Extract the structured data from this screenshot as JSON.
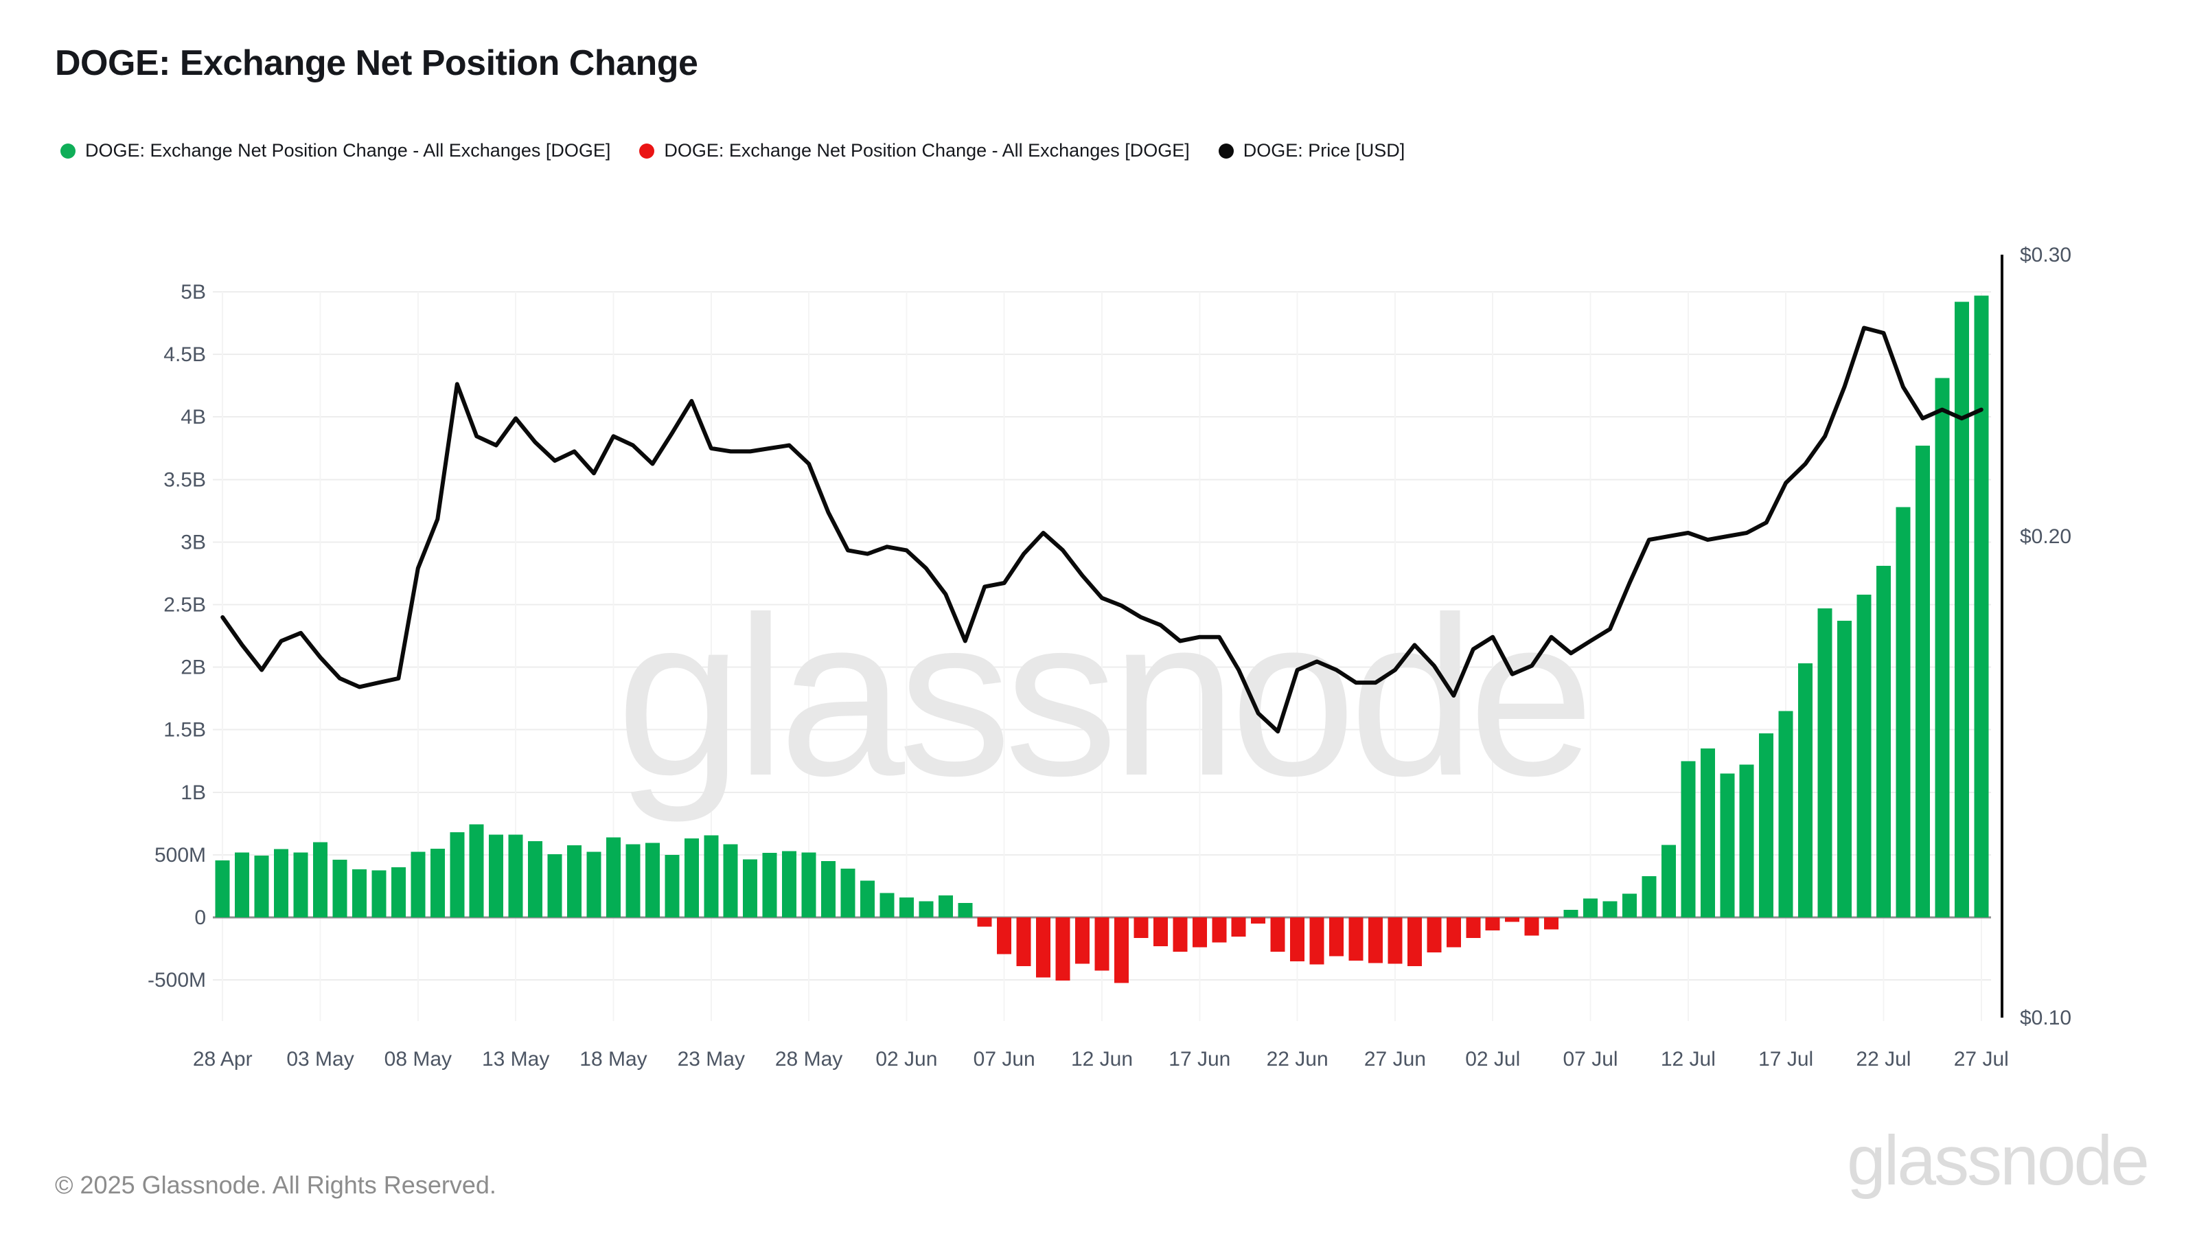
{
  "header": {
    "title": "DOGE: Exchange Net Position Change"
  },
  "legend": {
    "items": [
      {
        "label": "DOGE: Exchange Net Position Change - All Exchanges [DOGE]",
        "color": "#0fae58",
        "marker": "green-dot"
      },
      {
        "label": "DOGE: Exchange Net Position Change - All Exchanges [DOGE]",
        "color": "#ea1414",
        "marker": "red-dot"
      },
      {
        "label": "DOGE: Price [USD]",
        "color": "#0b0b0b",
        "marker": "black-dot"
      }
    ]
  },
  "watermark": {
    "text": "glassnode"
  },
  "footer": {
    "copyright": "© 2025 Glassnode. All Rights Reserved.",
    "logo_text": "glassnode"
  },
  "colors": {
    "bar_positive": "#04ae54",
    "bar_negative": "#e91515",
    "price_line": "#0a0a0a",
    "gridline": "#ededed",
    "vertical_gridline": "#f4f4f4",
    "zero_line": "#8f8f8f",
    "axis_text": "#4c5563",
    "watermark": "#e8e8e8"
  },
  "chart_data": {
    "type": "combo-bar-line",
    "title": "DOGE: Exchange Net Position Change",
    "grid": "on",
    "legend_position": "top-left",
    "left_axis": {
      "unit": "DOGE",
      "tick_labels": [
        "5B",
        "4.5B",
        "4B",
        "3.5B",
        "3B",
        "2.5B",
        "2B",
        "1.5B",
        "1B",
        "500M",
        "0",
        "-500M"
      ],
      "tick_values_millions": [
        5000,
        4500,
        4000,
        3500,
        3000,
        2500,
        2000,
        1500,
        1000,
        500,
        0,
        -500
      ],
      "range_millions": [
        -800,
        5200
      ]
    },
    "right_axis": {
      "unit": "USD",
      "scale": "log",
      "tick_labels": [
        "$0.30",
        "$0.20",
        "$0.10"
      ],
      "tick_values": [
        0.3,
        0.2,
        0.1
      ]
    },
    "x_tick_labels": [
      "28 Apr",
      "03 May",
      "08 May",
      "13 May",
      "18 May",
      "23 May",
      "28 May",
      "02 Jun",
      "07 Jun",
      "12 Jun",
      "17 Jun",
      "22 Jun",
      "27 Jun",
      "02 Jul",
      "07 Jul",
      "12 Jul",
      "17 Jul",
      "22 Jul",
      "27 Jul"
    ],
    "x_tick_every_days": 5,
    "dates": [
      "28 Apr",
      "29 Apr",
      "30 Apr",
      "01 May",
      "02 May",
      "03 May",
      "04 May",
      "05 May",
      "06 May",
      "07 May",
      "08 May",
      "09 May",
      "10 May",
      "11 May",
      "12 May",
      "13 May",
      "14 May",
      "15 May",
      "16 May",
      "17 May",
      "18 May",
      "19 May",
      "20 May",
      "21 May",
      "22 May",
      "23 May",
      "24 May",
      "25 May",
      "26 May",
      "27 May",
      "28 May",
      "29 May",
      "30 May",
      "31 May",
      "01 Jun",
      "02 Jun",
      "03 Jun",
      "04 Jun",
      "05 Jun",
      "06 Jun",
      "07 Jun",
      "08 Jun",
      "09 Jun",
      "10 Jun",
      "11 Jun",
      "12 Jun",
      "13 Jun",
      "14 Jun",
      "15 Jun",
      "16 Jun",
      "17 Jun",
      "18 Jun",
      "19 Jun",
      "20 Jun",
      "21 Jun",
      "22 Jun",
      "23 Jun",
      "24 Jun",
      "25 Jun",
      "26 Jun",
      "27 Jun",
      "28 Jun",
      "29 Jun",
      "30 Jun",
      "01 Jul",
      "02 Jul",
      "03 Jul",
      "04 Jul",
      "05 Jul",
      "06 Jul",
      "07 Jul",
      "08 Jul",
      "09 Jul",
      "10 Jul",
      "11 Jul",
      "12 Jul",
      "13 Jul",
      "14 Jul",
      "15 Jul",
      "16 Jul",
      "17 Jul",
      "18 Jul",
      "19 Jul",
      "20 Jul",
      "21 Jul",
      "22 Jul",
      "23 Jul",
      "24 Jul",
      "25 Jul",
      "26 Jul",
      "27 Jul"
    ],
    "series": [
      {
        "name": "DOGE: Exchange Net Position Change - All Exchanges [DOGE]",
        "type": "bar",
        "unit": "DOGE (millions)",
        "color_positive": "#04ae54",
        "color_negative": "#e91515",
        "values_millions": [
          455,
          520,
          495,
          545,
          520,
          600,
          460,
          385,
          375,
          400,
          525,
          550,
          680,
          745,
          660,
          660,
          610,
          505,
          575,
          525,
          640,
          585,
          595,
          500,
          630,
          655,
          585,
          465,
          515,
          530,
          520,
          450,
          390,
          295,
          195,
          160,
          130,
          175,
          115,
          -75,
          -295,
          -390,
          -480,
          -505,
          -370,
          -425,
          -525,
          -165,
          -230,
          -275,
          -240,
          -200,
          -155,
          -50,
          -275,
          -350,
          -375,
          -310,
          -345,
          -365,
          -370,
          -390,
          -280,
          -240,
          -165,
          -105,
          -35,
          -145,
          -95,
          60,
          150,
          130,
          190,
          330,
          580,
          1250,
          1350,
          1150,
          1220,
          1470,
          1650,
          2030,
          2470,
          2370,
          2580,
          2810,
          3280,
          3770,
          4310,
          4920,
          4970
        ]
      },
      {
        "name": "DOGE: Price [USD]",
        "type": "line",
        "unit": "USD",
        "color": "#0a0a0a",
        "values_usd": [
          0.178,
          0.171,
          0.165,
          0.172,
          0.174,
          0.168,
          0.163,
          0.161,
          0.162,
          0.163,
          0.191,
          0.205,
          0.249,
          0.231,
          0.228,
          0.237,
          0.229,
          0.223,
          0.226,
          0.219,
          0.231,
          0.228,
          0.222,
          0.232,
          0.243,
          0.227,
          0.226,
          0.226,
          0.227,
          0.228,
          0.222,
          0.207,
          0.196,
          0.195,
          0.197,
          0.196,
          0.191,
          0.184,
          0.172,
          0.186,
          0.187,
          0.195,
          0.201,
          0.196,
          0.189,
          0.183,
          0.181,
          0.178,
          0.176,
          0.172,
          0.173,
          0.173,
          0.165,
          0.155,
          0.151,
          0.165,
          0.167,
          0.165,
          0.162,
          0.162,
          0.165,
          0.171,
          0.166,
          0.159,
          0.17,
          0.173,
          0.164,
          0.166,
          0.173,
          0.169,
          0.172,
          0.175,
          0.187,
          0.199,
          0.2,
          0.201,
          0.199,
          0.2,
          0.201,
          0.204,
          0.216,
          0.222,
          0.231,
          0.248,
          0.27,
          0.268,
          0.248,
          0.237,
          0.24,
          0.237,
          0.24
        ]
      }
    ]
  }
}
